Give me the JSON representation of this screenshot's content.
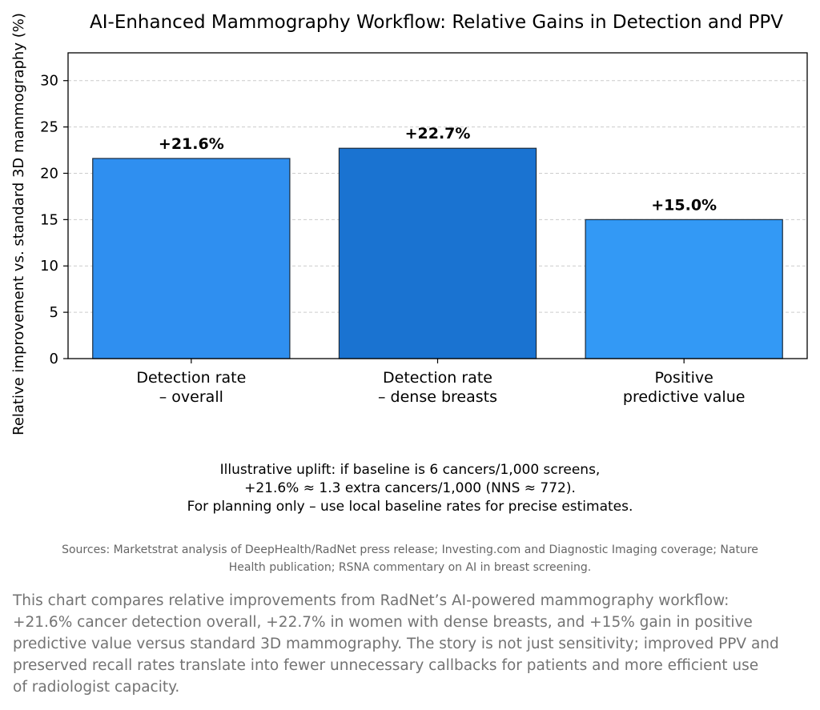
{
  "chart_data": {
    "type": "bar",
    "title": "AI-Enhanced Mammography Workflow: Relative Gains in Detection and PPV",
    "ylabel": "Relative improvement vs. standard 3D mammography (%)",
    "ylim": [
      0,
      33
    ],
    "yticks": [
      0,
      5,
      10,
      15,
      20,
      25,
      30
    ],
    "grid": "horizontal dashed",
    "categories": [
      [
        "Detection rate",
        "– overall"
      ],
      [
        "Detection rate",
        "– dense breasts"
      ],
      [
        "Positive",
        "predictive value"
      ]
    ],
    "values": [
      21.6,
      22.7,
      15.0
    ],
    "data_labels": [
      "+21.6%",
      "+22.7%",
      "+15.0%"
    ],
    "colors": [
      "#2f8ff0",
      "#1a73d1",
      "#3399f5"
    ]
  },
  "note_lines": [
    "Illustrative uplift: if baseline is 6 cancers/1,000 screens,",
    "+21.6% ≈ 1.3 extra cancers/1,000 (NNS ≈ 772).",
    "For planning only – use local baseline rates for precise estimates."
  ],
  "sources": [
    "Sources: Marketstrat analysis of DeepHealth/RadNet press release; Investing.com and Diagnostic Imaging coverage; Nature",
    "Health publication; RSNA commentary on AI in breast screening."
  ],
  "summary": [
    "This chart compares relative improvements from RadNet’s AI-powered mammography workflow:",
    "+21.6% cancer detection overall, +22.7% in women with dense breasts, and +15% gain in positive",
    "predictive value versus standard 3D mammography. The story is not just sensitivity; improved PPV and",
    "preserved recall rates translate into fewer unnecessary callbacks for patients and more efficient use",
    "of radiologist capacity."
  ]
}
